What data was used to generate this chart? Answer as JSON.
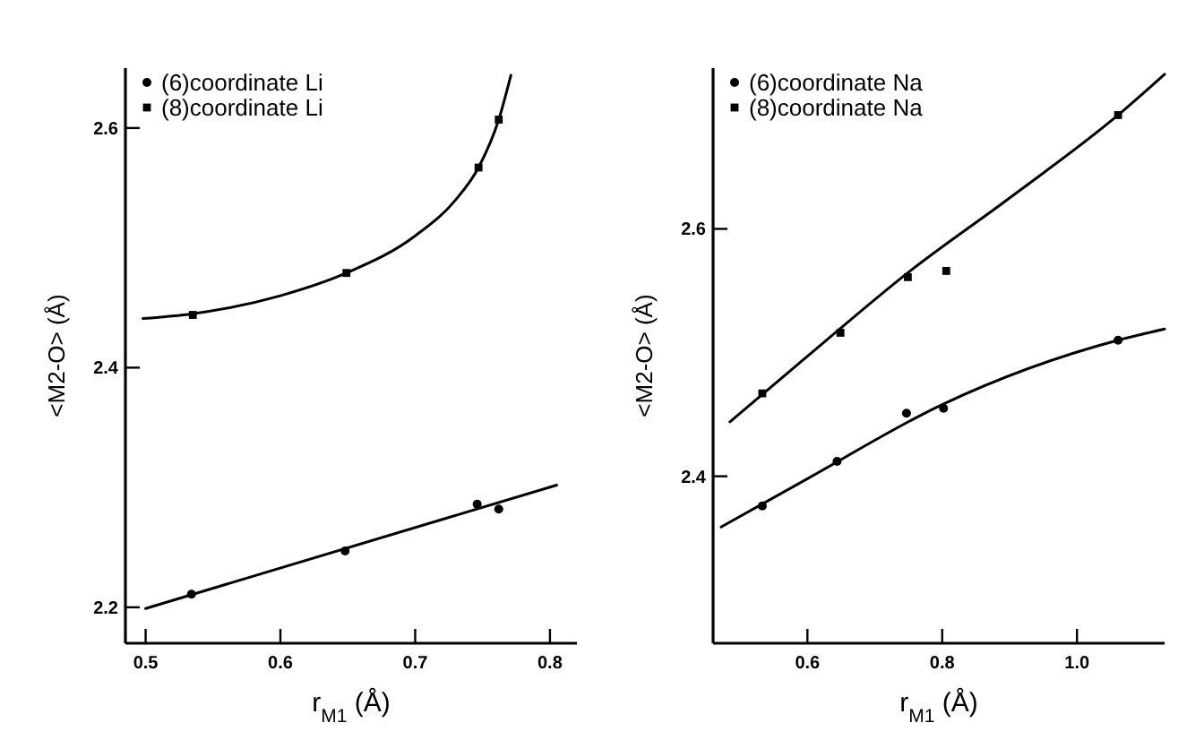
{
  "chart_data": [
    {
      "type": "scatter",
      "xlabel": "r$_{M1}$ (Å)",
      "ylabel": "<M2-O> (Å)",
      "xlim": [
        0.485,
        0.82
      ],
      "ylim": [
        2.17,
        2.65
      ],
      "xticks": [
        0.5,
        0.6,
        0.7,
        0.8
      ],
      "yticks": [
        2.2,
        2.4,
        2.6
      ],
      "legend": "top left",
      "grid": false,
      "series": [
        {
          "name": "(6)coordinate Li",
          "color": "#000000",
          "marker": "circle",
          "x": [
            0.534,
            0.648,
            0.746,
            0.762
          ],
          "values": [
            2.211,
            2.247,
            2.286,
            2.282
          ]
        },
        {
          "name": "(8)coordinate Li",
          "color": "#000000",
          "marker": "square",
          "x": [
            0.535,
            0.649,
            0.747,
            0.762
          ],
          "values": [
            2.444,
            2.479,
            2.567,
            2.607
          ]
        },
        {
          "type": "line",
          "color": "#000000",
          "marker": "none",
          "x": [
            0.5,
            0.805
          ],
          "values": [
            2.199,
            2.302
          ]
        },
        {
          "type": "line",
          "color": "#000000",
          "marker": "none",
          "x": [
            0.498,
            0.535,
            0.6,
            0.649,
            0.7,
            0.73,
            0.747,
            0.762,
            0.771
          ],
          "values": [
            2.441,
            2.445,
            2.46,
            2.479,
            2.51,
            2.54,
            2.567,
            2.607,
            2.644
          ]
        }
      ]
    },
    {
      "type": "scatter",
      "xlabel": "r$_{M1}$ (Å)",
      "ylabel": "<M2-O> (Å)",
      "xlim": [
        0.46,
        1.13
      ],
      "ylim": [
        2.265,
        2.73
      ],
      "xticks": [
        0.6,
        0.8,
        {
          "value": 1,
          "label": "1.0"
        }
      ],
      "yticks": [
        2.4,
        2.6
      ],
      "legend": "top left",
      "grid": false,
      "series": [
        {
          "name": "(6)coordinate Na",
          "color": "#000000",
          "marker": "circle",
          "x": [
            0.533,
            0.644,
            0.747,
            0.802,
            1.061
          ],
          "values": [
            2.376,
            2.412,
            2.451,
            2.455,
            2.51
          ]
        },
        {
          "name": "(8)coordinate Na",
          "color": "#000000",
          "marker": "square",
          "x": [
            0.533,
            0.649,
            0.749,
            0.806,
            1.061
          ],
          "values": [
            2.467,
            2.516,
            2.561,
            2.566,
            2.692
          ]
        },
        {
          "type": "line",
          "color": "#000000",
          "marker": "none",
          "x": [
            0.472,
            0.6,
            0.8,
            1.061,
            1.13
          ],
          "values": [
            2.359,
            2.398,
            2.458,
            2.51,
            2.519
          ]
        },
        {
          "type": "line",
          "color": "#000000",
          "marker": "none",
          "x": [
            0.485,
            0.6,
            0.75,
            0.9,
            1.061,
            1.13
          ],
          "values": [
            2.444,
            2.497,
            2.565,
            2.625,
            2.692,
            2.725
          ]
        }
      ]
    }
  ]
}
